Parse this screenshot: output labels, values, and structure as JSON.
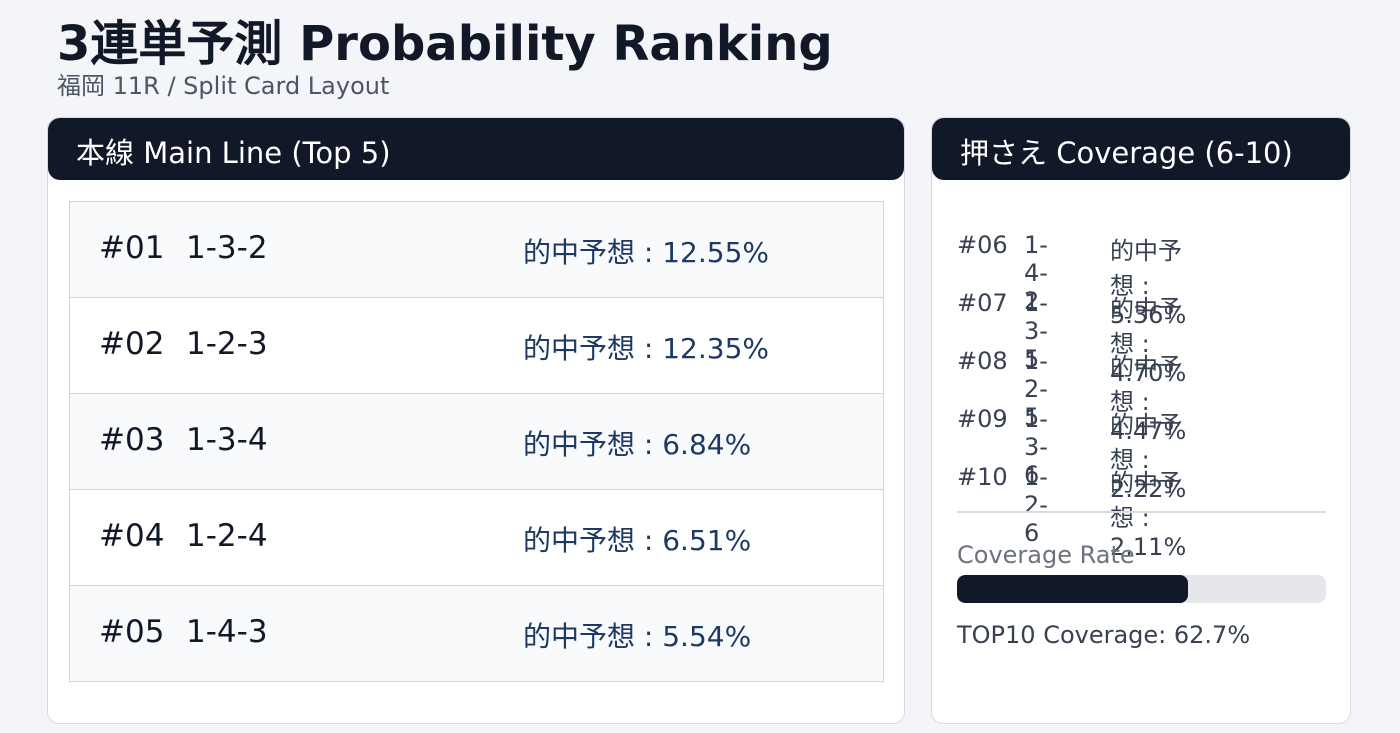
{
  "header": {
    "title": "3連単予測 Probability Ranking",
    "subtitle": "福岡 11R / Split Card Layout"
  },
  "main": {
    "title": "本線 Main Line (Top 5)",
    "rows": [
      {
        "rank": "#01",
        "combo": "1-3-2",
        "prob": "的中予想 : 12.55%"
      },
      {
        "rank": "#02",
        "combo": "1-2-3",
        "prob": "的中予想 : 12.35%"
      },
      {
        "rank": "#03",
        "combo": "1-3-4",
        "prob": "的中予想 : 6.84%"
      },
      {
        "rank": "#04",
        "combo": "1-2-4",
        "prob": "的中予想 : 6.51%"
      },
      {
        "rank": "#05",
        "combo": "1-4-3",
        "prob": "的中予想 : 5.54%"
      }
    ]
  },
  "coverage": {
    "title": "押さえ Coverage (6-10)",
    "rows": [
      {
        "rank": "#06",
        "combo": "1-4-2",
        "prob": "的中予想 : 5.36%"
      },
      {
        "rank": "#07",
        "combo": "1-3-5",
        "prob": "的中予想 : 4.70%"
      },
      {
        "rank": "#08",
        "combo": "1-2-5",
        "prob": "的中予想 : 4.47%"
      },
      {
        "rank": "#09",
        "combo": "1-3-6",
        "prob": "的中予想 : 2.22%"
      },
      {
        "rank": "#10",
        "combo": "1-2-6",
        "prob": "的中予想 : 2.11%"
      }
    ],
    "rate_label": "Coverage Rate",
    "rate": 62.7,
    "rate_text": "TOP10 Coverage: 62.7%"
  }
}
